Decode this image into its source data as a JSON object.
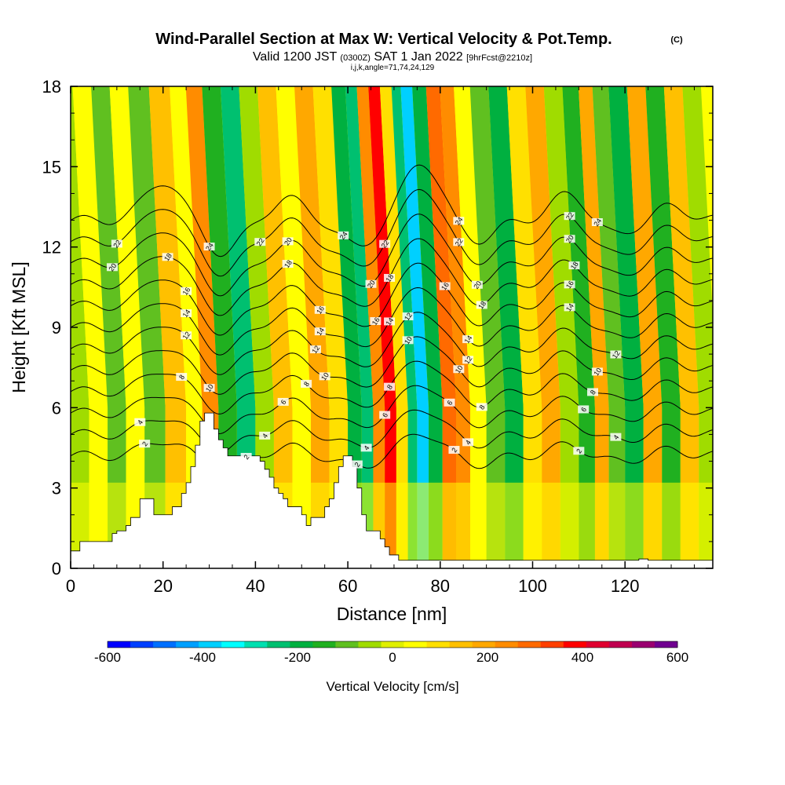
{
  "header": {
    "title": "Wind-Parallel Section at Max W: Vertical Velocity & Pot.Temp.",
    "copyright": "(C)",
    "valid_prefix": "Valid 1200 JST",
    "valid_utc": "(0300Z)",
    "valid_date": "SAT 1 Jan 2022",
    "forecast_info": "[9hrFcst@2210z]",
    "section_params": "i,j,k,angle=71,74,24,129"
  },
  "chart_data": {
    "type": "heatmap",
    "xlabel": "Distance [nm]",
    "ylabel": "Height [Kft MSL]",
    "xlim": [
      0,
      139
    ],
    "ylim": [
      0,
      18
    ],
    "x_ticks": [
      0,
      20,
      40,
      60,
      80,
      100,
      120
    ],
    "y_ticks": [
      0,
      3,
      6,
      9,
      12,
      15,
      18
    ],
    "colorbar": {
      "label": "Vertical Velocity [cm/s]",
      "min": -600,
      "max": 600,
      "tick_values": [
        -600,
        -400,
        -200,
        0,
        200,
        400,
        600
      ],
      "colors": [
        "#0000ff",
        "#0040ff",
        "#0070ff",
        "#00a0ff",
        "#00d0ff",
        "#00ffff",
        "#00e0b0",
        "#00c070",
        "#00b040",
        "#20b020",
        "#60c020",
        "#a0dc00",
        "#e0f000",
        "#ffff00",
        "#ffe000",
        "#ffc000",
        "#ffa800",
        "#ff8c00",
        "#ff6a00",
        "#ff4000",
        "#ff0000",
        "#e00030",
        "#c00050",
        "#9a0070",
        "#700090"
      ]
    },
    "velocity_bands": [
      {
        "x": 2,
        "w": -40
      },
      {
        "x": 6,
        "w": 40
      },
      {
        "x": 10,
        "w": -110
      },
      {
        "x": 14,
        "w": 60
      },
      {
        "x": 18,
        "w": -80
      },
      {
        "x": 23,
        "w": 150
      },
      {
        "x": 27,
        "w": 40
      },
      {
        "x": 30,
        "w": 230
      },
      {
        "x": 34,
        "w": -130
      },
      {
        "x": 38,
        "w": -220
      },
      {
        "x": 42,
        "w": -70
      },
      {
        "x": 46,
        "w": 140
      },
      {
        "x": 50,
        "w": 60
      },
      {
        "x": 54,
        "w": 200
      },
      {
        "x": 58,
        "w": 80
      },
      {
        "x": 62,
        "w": -190
      },
      {
        "x": 64,
        "w": -240
      },
      {
        "x": 67,
        "w": 260
      },
      {
        "x": 69,
        "w": 380
      },
      {
        "x": 72,
        "w": 90
      },
      {
        "x": 74,
        "w": -250
      },
      {
        "x": 76,
        "w": -390
      },
      {
        "x": 79,
        "w": -180
      },
      {
        "x": 82,
        "w": 280
      },
      {
        "x": 85,
        "w": 220
      },
      {
        "x": 88,
        "w": 70
      },
      {
        "x": 92,
        "w": -110
      },
      {
        "x": 96,
        "w": -170
      },
      {
        "x": 100,
        "w": 90
      },
      {
        "x": 104,
        "w": 200
      },
      {
        "x": 108,
        "w": -60
      },
      {
        "x": 112,
        "w": -140
      },
      {
        "x": 115,
        "w": 170
      },
      {
        "x": 118,
        "w": -100
      },
      {
        "x": 122,
        "w": -170
      },
      {
        "x": 126,
        "w": 190
      },
      {
        "x": 130,
        "w": -150
      },
      {
        "x": 134,
        "w": 150
      },
      {
        "x": 138,
        "w": -60
      }
    ],
    "terrain": [
      [
        0,
        0.65
      ],
      [
        2,
        0.65
      ],
      [
        2,
        1.0
      ],
      [
        9,
        1.0
      ],
      [
        9,
        1.3
      ],
      [
        10,
        1.3
      ],
      [
        10,
        1.4
      ],
      [
        12,
        1.4
      ],
      [
        12,
        1.6
      ],
      [
        13,
        1.6
      ],
      [
        13,
        1.9
      ],
      [
        15,
        1.9
      ],
      [
        15,
        2.6
      ],
      [
        18,
        2.6
      ],
      [
        18,
        2.0
      ],
      [
        22,
        2.0
      ],
      [
        22,
        2.3
      ],
      [
        24,
        2.3
      ],
      [
        24,
        2.8
      ],
      [
        25,
        2.8
      ],
      [
        25,
        3.2
      ],
      [
        26,
        3.2
      ],
      [
        26,
        3.8
      ],
      [
        27,
        3.8
      ],
      [
        27,
        4.6
      ],
      [
        28,
        4.6
      ],
      [
        28,
        5.5
      ],
      [
        29,
        5.5
      ],
      [
        29,
        5.8
      ],
      [
        31,
        5.8
      ],
      [
        31,
        5.2
      ],
      [
        32,
        5.2
      ],
      [
        32,
        4.8
      ],
      [
        33,
        4.8
      ],
      [
        33,
        4.5
      ],
      [
        34,
        4.5
      ],
      [
        34,
        4.2
      ],
      [
        41,
        4.2
      ],
      [
        41,
        4.0
      ],
      [
        42,
        4.0
      ],
      [
        42,
        3.7
      ],
      [
        43,
        3.7
      ],
      [
        43,
        3.4
      ],
      [
        44,
        3.4
      ],
      [
        44,
        3.0
      ],
      [
        45,
        3.0
      ],
      [
        45,
        2.8
      ],
      [
        46,
        2.8
      ],
      [
        46,
        2.6
      ],
      [
        47,
        2.6
      ],
      [
        47,
        2.3
      ],
      [
        50,
        2.3
      ],
      [
        50,
        2.0
      ],
      [
        51,
        2.0
      ],
      [
        51,
        1.6
      ],
      [
        52,
        1.6
      ],
      [
        52,
        1.9
      ],
      [
        55,
        1.9
      ],
      [
        55,
        2.3
      ],
      [
        56,
        2.3
      ],
      [
        56,
        2.6
      ],
      [
        57,
        2.6
      ],
      [
        57,
        3.2
      ],
      [
        58,
        3.2
      ],
      [
        58,
        3.8
      ],
      [
        59,
        3.8
      ],
      [
        59,
        4.2
      ],
      [
        61,
        4.2
      ],
      [
        61,
        3.8
      ],
      [
        62,
        3.8
      ],
      [
        62,
        3.0
      ],
      [
        63,
        3.0
      ],
      [
        63,
        2.0
      ],
      [
        64,
        2.0
      ],
      [
        64,
        1.4
      ],
      [
        67,
        1.4
      ],
      [
        67,
        1.1
      ],
      [
        68,
        1.1
      ],
      [
        68,
        0.8
      ],
      [
        69,
        0.8
      ],
      [
        69,
        0.5
      ],
      [
        71,
        0.5
      ],
      [
        71,
        0.3
      ],
      [
        123,
        0.3
      ],
      [
        123,
        0.35
      ],
      [
        125,
        0.35
      ],
      [
        125,
        0.3
      ],
      [
        139,
        0.3
      ],
      [
        139,
        0
      ]
    ],
    "isentropes": [
      {
        "label": "2",
        "base": 4.2,
        "labels": [
          {
            "x": 16,
            "lbl": "2"
          },
          {
            "x": 38,
            "lbl": "2"
          },
          {
            "x": 62,
            "lbl": "2"
          },
          {
            "x": 83,
            "lbl": "2"
          },
          {
            "x": 110,
            "lbl": "2"
          }
        ]
      },
      {
        "label": "4",
        "base": 5.0,
        "labels": [
          {
            "x": 15,
            "lbl": "4"
          },
          {
            "x": 42,
            "lbl": "4"
          },
          {
            "x": 64,
            "lbl": "4"
          },
          {
            "x": 86,
            "lbl": "4"
          },
          {
            "x": 118,
            "lbl": "4"
          }
        ]
      },
      {
        "label": "6",
        "base": 5.8,
        "labels": [
          {
            "x": 46,
            "lbl": "6"
          },
          {
            "x": 68,
            "lbl": "6"
          },
          {
            "x": 82,
            "lbl": "6"
          },
          {
            "x": 111,
            "lbl": "6"
          }
        ]
      },
      {
        "label": "8",
        "base": 6.6,
        "labels": [
          {
            "x": 24,
            "lbl": "8"
          },
          {
            "x": 51,
            "lbl": "8"
          },
          {
            "x": 69,
            "lbl": "8"
          },
          {
            "x": 89,
            "lbl": "8"
          },
          {
            "x": 113,
            "lbl": "8"
          }
        ]
      },
      {
        "label": "10",
        "base": 7.4,
        "labels": [
          {
            "x": 30,
            "lbl": "10"
          },
          {
            "x": 55,
            "lbl": "10"
          },
          {
            "x": 73,
            "lbl": "10"
          },
          {
            "x": 84,
            "lbl": "10"
          },
          {
            "x": 114,
            "lbl": "10"
          }
        ]
      },
      {
        "label": "12",
        "base": 8.2,
        "labels": [
          {
            "x": 25,
            "lbl": "12"
          },
          {
            "x": 53,
            "lbl": "12"
          },
          {
            "x": 73,
            "lbl": "12"
          },
          {
            "x": 86,
            "lbl": "12"
          },
          {
            "x": 118,
            "lbl": "12"
          }
        ]
      },
      {
        "label": "14",
        "base": 9.0,
        "labels": [
          {
            "x": 25,
            "lbl": "14"
          },
          {
            "x": 54,
            "lbl": "14"
          },
          {
            "x": 69,
            "lbl": "14"
          },
          {
            "x": 86,
            "lbl": "14"
          },
          {
            "x": 108,
            "lbl": "14"
          }
        ]
      },
      {
        "label": "16",
        "base": 9.8,
        "labels": [
          {
            "x": 25,
            "lbl": "16"
          },
          {
            "x": 54,
            "lbl": "16"
          },
          {
            "x": 66,
            "lbl": "16"
          },
          {
            "x": 81,
            "lbl": "16"
          },
          {
            "x": 108,
            "lbl": "16"
          }
        ]
      },
      {
        "label": "18",
        "base": 10.6,
        "labels": [
          {
            "x": 21,
            "lbl": "18"
          },
          {
            "x": 47,
            "lbl": "18"
          },
          {
            "x": 69,
            "lbl": "18"
          },
          {
            "x": 89,
            "lbl": "18"
          },
          {
            "x": 109,
            "lbl": "18"
          }
        ]
      },
      {
        "label": "20",
        "base": 11.4,
        "labels": [
          {
            "x": 9,
            "lbl": "20"
          },
          {
            "x": 47,
            "lbl": "20"
          },
          {
            "x": 65,
            "lbl": "20"
          },
          {
            "x": 88,
            "lbl": "20"
          },
          {
            "x": 108,
            "lbl": "20"
          }
        ]
      },
      {
        "label": "22",
        "base": 12.2,
        "labels": [
          {
            "x": 10,
            "lbl": "22"
          },
          {
            "x": 41,
            "lbl": "22"
          },
          {
            "x": 68,
            "lbl": "22"
          },
          {
            "x": 84,
            "lbl": "22"
          },
          {
            "x": 108,
            "lbl": "22"
          }
        ]
      },
      {
        "label": "24",
        "base": 13.0,
        "labels": [
          {
            "x": 30,
            "lbl": "24"
          },
          {
            "x": 59,
            "lbl": "24"
          },
          {
            "x": 84,
            "lbl": "24"
          },
          {
            "x": 114,
            "lbl": "24"
          }
        ]
      }
    ]
  }
}
